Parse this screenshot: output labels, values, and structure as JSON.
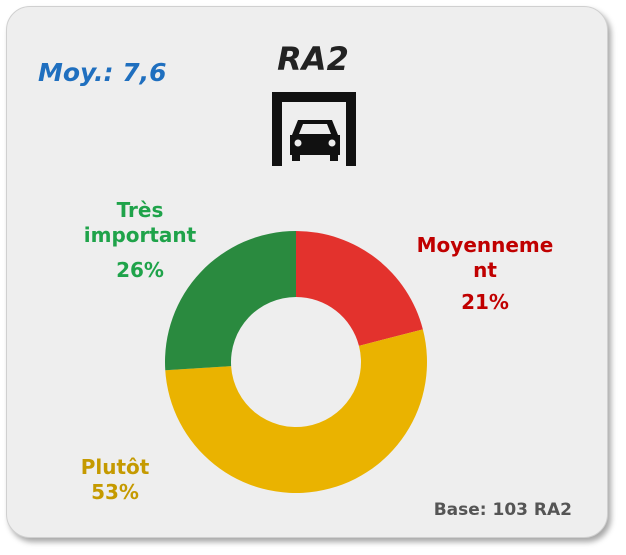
{
  "chart_data": {
    "type": "donut",
    "title": "RA2",
    "annotations": [
      "Moy.: 7,6",
      "Base: 103 RA2"
    ],
    "categories": [
      "Moyennement",
      "Plutôt",
      "Très important"
    ],
    "values": [
      21,
      53,
      26
    ],
    "value_labels": [
      "21%",
      "53%",
      "26%"
    ],
    "colors": [
      "#e3322d",
      "#eab300",
      "#2a8a3f"
    ],
    "label_colors": [
      "#c00000",
      "#c59a00",
      "#1fa34a"
    ]
  }
}
